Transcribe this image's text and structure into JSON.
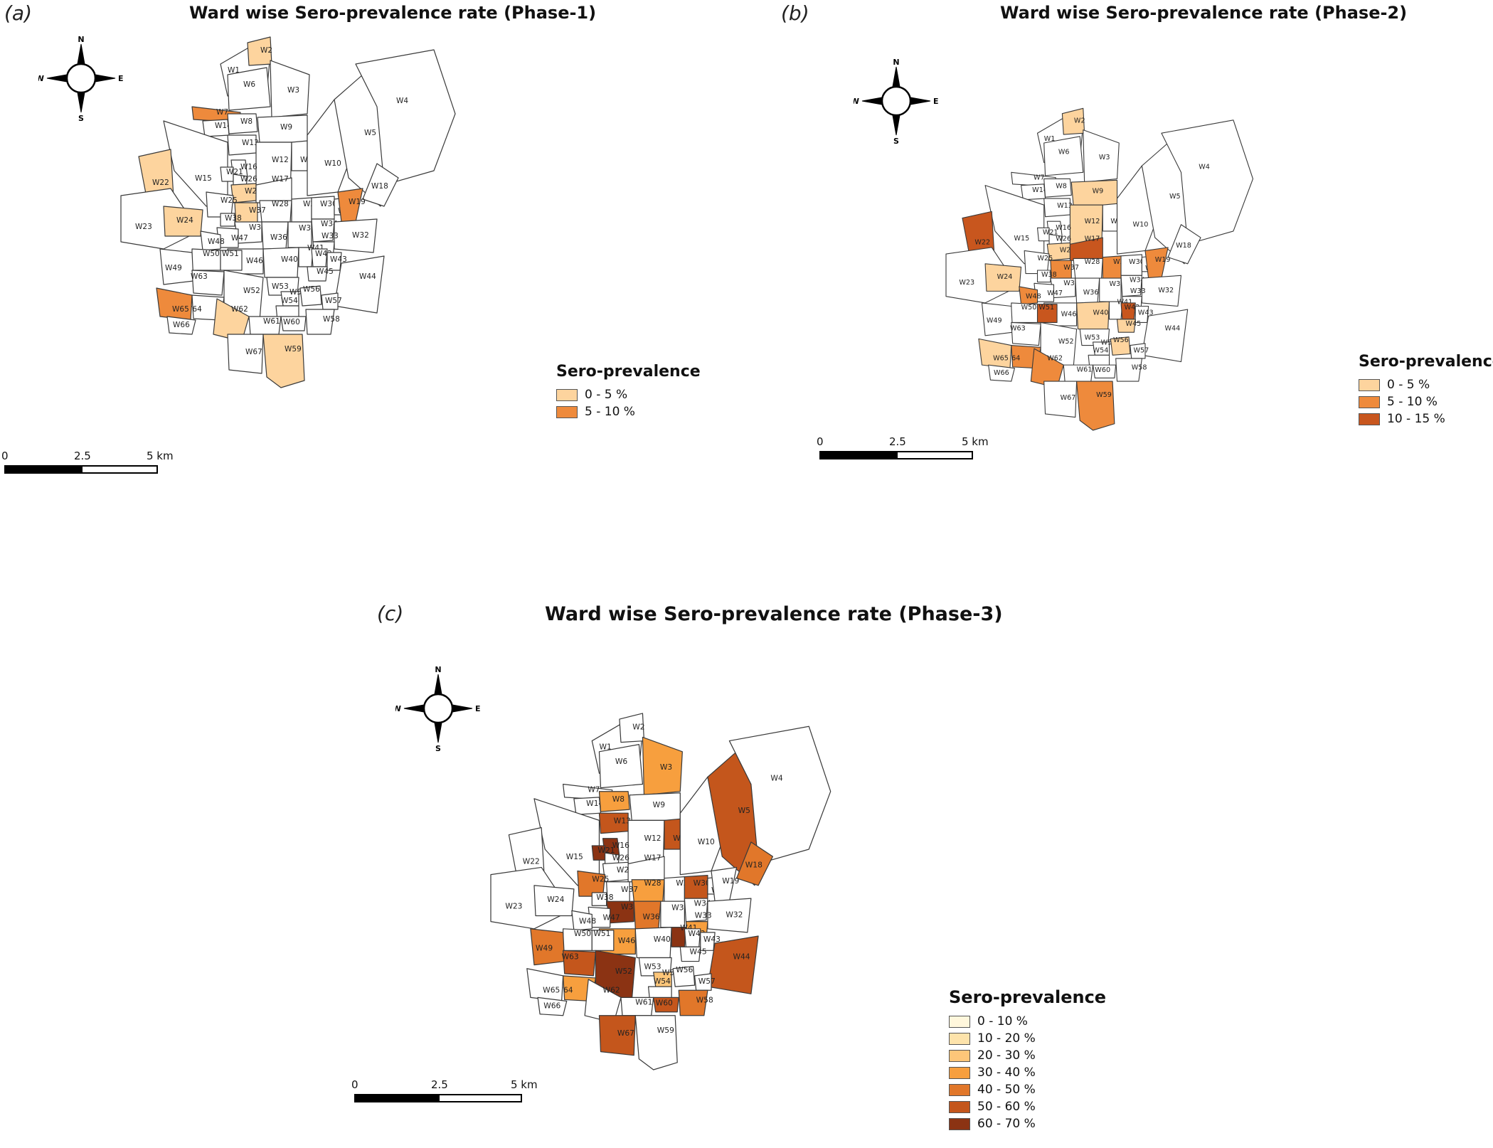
{
  "colors": {
    "none": "#ffffff",
    "c0_5": "#fdd49e",
    "c5_10": "#ee8a3c",
    "c10_15": "#c8561e",
    "p3_0_10": "#fff7dc",
    "p3_10_20": "#fde3ab",
    "p3_20_30": "#fdc679",
    "p3_30_40": "#f79f3e",
    "p3_40_50": "#e1772a",
    "p3_50_60": "#c4561c",
    "p3_60_70": "#8b3313"
  },
  "compass": {
    "n": "N",
    "s": "S",
    "e": "E",
    "w": "W"
  },
  "scale": {
    "t0": "0",
    "t1": "2.5",
    "t2": "5 km"
  },
  "panels": [
    {
      "letter": "(a)",
      "title": "Ward wise Sero-prevalence rate (Phase-1)",
      "legend_title": "Sero-prevalence",
      "legend": [
        {
          "label": "0 - 5 %",
          "color": "#fdd49e"
        },
        {
          "label": "5 - 10 %",
          "color": "#ee8a3c"
        }
      ],
      "fills": {
        "W2": "c0_5",
        "W7": "c5_10",
        "W22": "c0_5",
        "W24": "c0_5",
        "W27": "c0_5",
        "W37": "c0_5",
        "W19": "c5_10",
        "W65": "c5_10",
        "W62": "c0_5",
        "W59": "c0_5"
      }
    },
    {
      "letter": "(b)",
      "title": "Ward wise Sero-prevalence rate (Phase-2)",
      "legend_title": "Sero-prevalence",
      "legend": [
        {
          "label": "0 - 5 %",
          "color": "#fdd49e"
        },
        {
          "label": "5 - 10 %",
          "color": "#ee8a3c"
        },
        {
          "label": "10 - 15 %",
          "color": "#c8561e"
        }
      ],
      "fills": {
        "W2": "c0_5",
        "W9": "c0_5",
        "W12": "c0_5",
        "W17": "c10_15",
        "W22": "c10_15",
        "W24": "c0_5",
        "W27": "c0_5",
        "W29": "c5_10",
        "W37": "c5_10",
        "W19": "c5_10",
        "W48": "c5_10",
        "W51": "c10_15",
        "W40": "c0_5",
        "W42": "c10_15",
        "W45": "c0_5",
        "W56": "c0_5",
        "W64": "c5_10",
        "W65": "c0_5",
        "W62": "c5_10",
        "W59": "c5_10"
      }
    },
    {
      "letter": "(c)",
      "title": "Ward wise Sero-prevalence rate (Phase-3)",
      "legend_title": "Sero-prevalence",
      "legend": [
        {
          "label": "0 - 10 %",
          "color": "#fff7dc"
        },
        {
          "label": "10 - 20 %",
          "color": "#fde3ab"
        },
        {
          "label": "20 - 30 %",
          "color": "#fdc679"
        },
        {
          "label": "30 - 40 %",
          "color": "#f79f3e"
        },
        {
          "label": "40 - 50 %",
          "color": "#e1772a"
        },
        {
          "label": "50 - 60 %",
          "color": "#c4561c"
        },
        {
          "label": "60 - 70 %",
          "color": "#8b3313"
        }
      ],
      "fills": {
        "W3": "p3_30_40",
        "W5": "p3_50_60",
        "W8": "p3_30_40",
        "W13": "p3_50_60",
        "W16": "p3_60_70",
        "W11": "p3_50_60",
        "W18": "p3_40_50",
        "W25": "p3_40_50",
        "W28": "p3_30_40",
        "W30": "p3_50_60",
        "W39": "p3_60_70",
        "W36": "p3_40_50",
        "W33": "p3_30_40",
        "W41": "p3_60_70",
        "W46": "p3_30_40",
        "W49": "p3_40_50",
        "W63": "p3_50_60",
        "W52": "p3_60_70",
        "W55": "p3_20_30",
        "W44": "p3_50_60",
        "W64": "p3_30_40",
        "W60": "p3_50_60",
        "W58": "p3_40_50",
        "W67": "p3_50_60",
        "W21": "p3_60_70"
      }
    }
  ]
}
